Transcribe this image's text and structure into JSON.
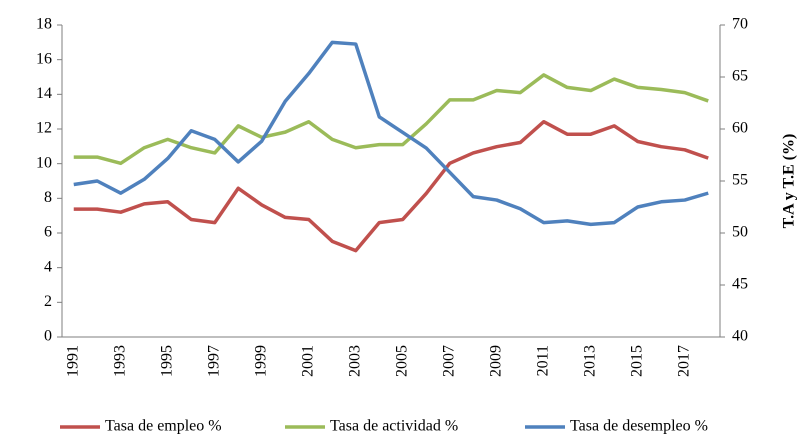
{
  "chart_data": {
    "type": "line",
    "categories": [
      "1991",
      null,
      "1993",
      null,
      "1995",
      null,
      "1997",
      null,
      "1999",
      null,
      "2001",
      null,
      "2003",
      null,
      "2005",
      null,
      "2007",
      null,
      "2009",
      null,
      "2011",
      null,
      "2013",
      null,
      "2015",
      null,
      "2017",
      null
    ],
    "series": [
      {
        "name": "Tasa de empleo %",
        "color": "#c0504d",
        "axis": "y2",
        "values": [
          52.3,
          52.3,
          52.0,
          52.8,
          53.0,
          51.3,
          51.0,
          54.3,
          52.7,
          51.5,
          51.3,
          49.2,
          48.3,
          51.0,
          51.3,
          53.8,
          56.7,
          57.7,
          58.3,
          58.7,
          60.7,
          59.5,
          59.5,
          60.3,
          58.8,
          58.3,
          58.0,
          57.2
        ]
      },
      {
        "name": "Tasa de actividad %",
        "color": "#9bbb59",
        "axis": "y2",
        "values": [
          57.3,
          57.3,
          56.7,
          58.2,
          59.0,
          58.2,
          57.7,
          60.3,
          59.2,
          59.7,
          60.7,
          59.0,
          58.2,
          58.5,
          58.5,
          60.5,
          62.8,
          62.8,
          63.7,
          63.5,
          65.2,
          64.0,
          63.7,
          64.8,
          64.0,
          63.8,
          63.5,
          62.7
        ]
      },
      {
        "name": "Tasa de desempleo %",
        "color": "#4f81bd",
        "values": [
          8.8,
          9.0,
          8.3,
          9.1,
          10.3,
          11.9,
          11.4,
          10.1,
          11.3,
          13.6,
          15.2,
          17.0,
          16.9,
          12.7,
          11.8,
          10.9,
          9.5,
          8.1,
          7.9,
          7.4,
          6.6,
          6.7,
          6.5,
          6.6,
          7.5,
          7.8,
          7.9,
          8.3
        ]
      }
    ],
    "ylim": [
      0,
      18
    ],
    "yticks": [
      0,
      2,
      4,
      6,
      8,
      10,
      12,
      14,
      16,
      18
    ],
    "y2lim": [
      40,
      70
    ],
    "y2ticks": [
      40,
      45,
      50,
      55,
      60,
      65,
      70
    ],
    "y2label": "T.A y T.E (%)",
    "legend": "bottom"
  }
}
